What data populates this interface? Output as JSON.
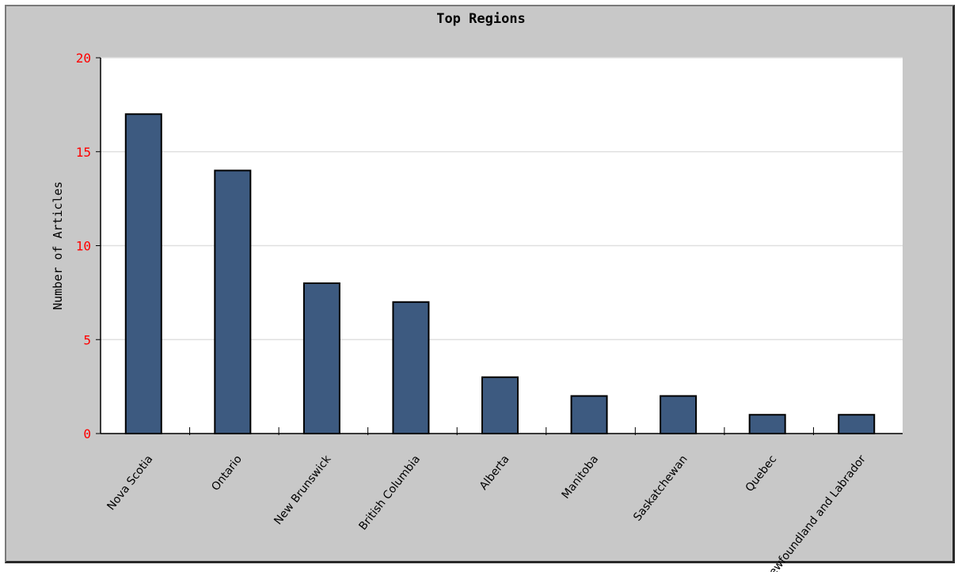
{
  "chart_data": {
    "type": "bar",
    "title": "Top Regions",
    "xlabel": "",
    "ylabel": "Number of Articles",
    "categories": [
      "Nova Scotia",
      "Ontario",
      "New Brunswick",
      "British Columbia",
      "Alberta",
      "Manitoba",
      "Saskatchewan",
      "Quebec",
      "Newfoundland and Labrador"
    ],
    "values": [
      17,
      14,
      8,
      7,
      3,
      2,
      2,
      1,
      1
    ],
    "ylim": [
      0,
      20
    ],
    "yticks": [
      "0",
      "5",
      "10",
      "15",
      "20"
    ],
    "grid": true,
    "colors": {
      "bar": "#3d5a80",
      "frame": "#c8c8c8",
      "plot_bg": "#ffffff",
      "tick_label": "#ff0000",
      "grid": "#e0e0e0"
    }
  }
}
